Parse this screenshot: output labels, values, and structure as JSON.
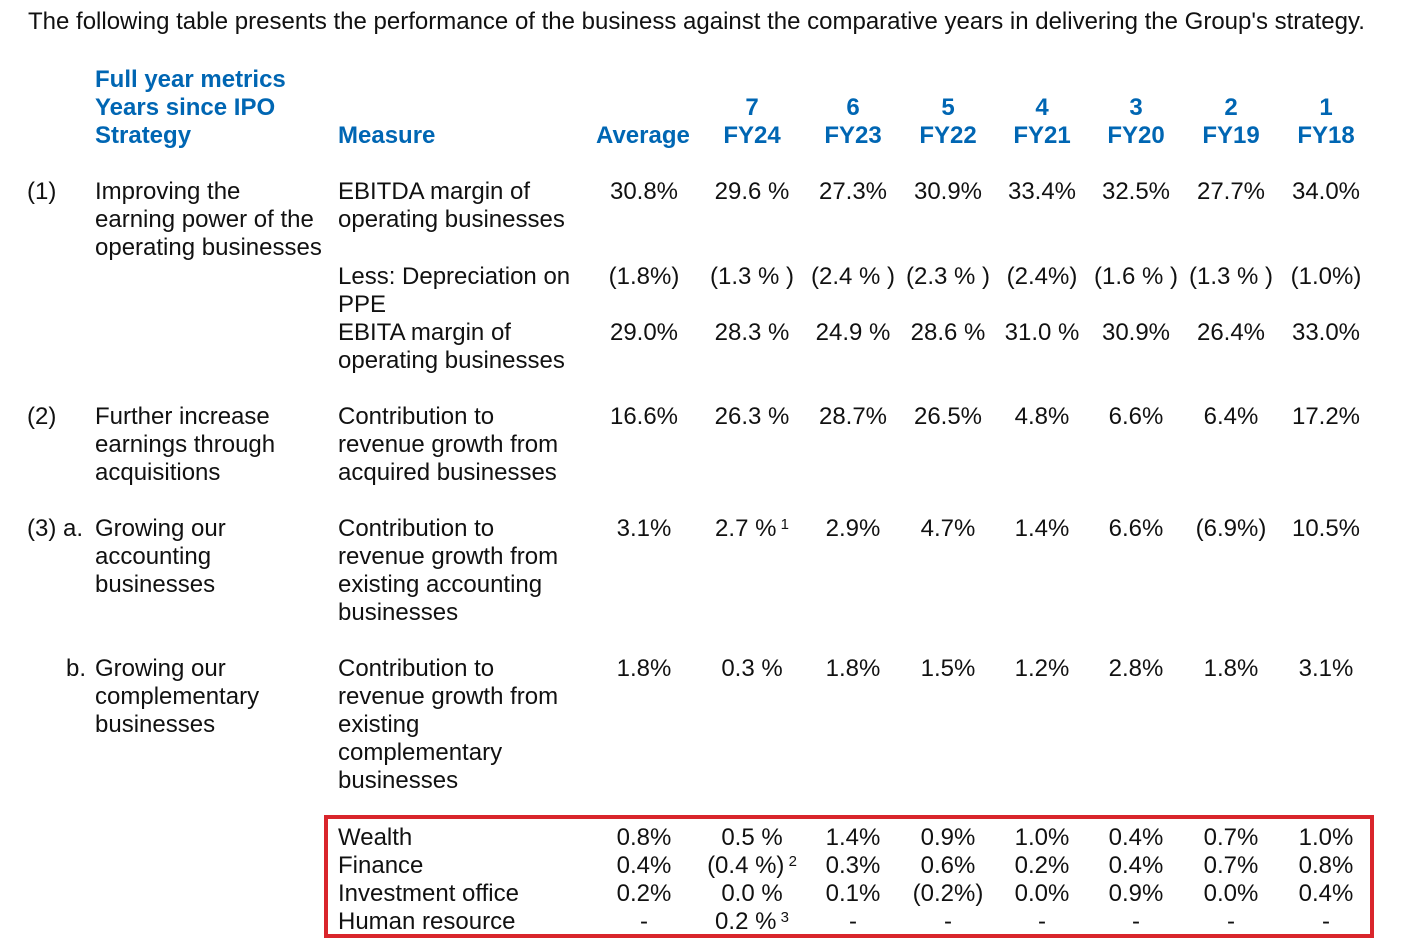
{
  "intro": "The following table presents the performance of the business against the comparative years in delivering the Group's strategy.",
  "header": {
    "left_lines": [
      "Full year metrics",
      "Years since IPO",
      "Strategy"
    ],
    "measure": "Measure",
    "average": "Average",
    "years": [
      {
        "n": "7",
        "fy": "FY24"
      },
      {
        "n": "6",
        "fy": "FY23"
      },
      {
        "n": "5",
        "fy": "FY22"
      },
      {
        "n": "4",
        "fy": "FY21"
      },
      {
        "n": "3",
        "fy": "FY20"
      },
      {
        "n": "2",
        "fy": "FY19"
      },
      {
        "n": "1",
        "fy": "FY18"
      }
    ]
  },
  "rows": [
    {
      "label": "(1)",
      "strategy": [
        "Improving the",
        "earning power of the",
        "operating businesses"
      ],
      "measure": [
        "EBITDA margin of",
        "operating businesses"
      ],
      "average": "30.8%",
      "values": [
        "29.6 %",
        "27.3%",
        "30.9%",
        "33.4%",
        "32.5%",
        "27.7%",
        "34.0%"
      ]
    },
    {
      "label": "",
      "strategy": [],
      "measure": [
        "Less: Depreciation on",
        "PPE"
      ],
      "average": "(1.8%)",
      "values": [
        "(1.3 % )",
        "(2.4 % )",
        "(2.3 % )",
        "(2.4%)",
        "(1.6 % )",
        "(1.3 % )",
        "(1.0%)"
      ]
    },
    {
      "label": "",
      "strategy": [],
      "measure": [
        "EBITA margin of",
        "operating businesses"
      ],
      "average": "29.0%",
      "values": [
        "28.3 %",
        "24.9 %",
        "28.6 %",
        "31.0 %",
        "30.9%",
        "26.4%",
        "33.0%"
      ]
    },
    {
      "label": "(2)",
      "strategy": [
        "Further increase",
        "earnings through",
        "acquisitions"
      ],
      "measure": [
        "Contribution to",
        "revenue growth from",
        "acquired businesses"
      ],
      "average": "16.6%",
      "values": [
        "26.3 %",
        "28.7%",
        "26.5%",
        "4.8%",
        "6.6%",
        "6.4%",
        "17.2%"
      ]
    },
    {
      "label": "(3) a.",
      "strategy": [
        "Growing our",
        "accounting",
        "businesses"
      ],
      "measure": [
        "Contribution to",
        "revenue growth from",
        "existing accounting",
        "businesses"
      ],
      "average": "3.1%",
      "values": [
        "2.7 %",
        "2.9%",
        "4.7%",
        "1.4%",
        "6.6%",
        "(6.9%)",
        "10.5%"
      ],
      "footnote_fy24": "1"
    },
    {
      "label": "b.",
      "strategy": [
        "Growing our",
        "complementary",
        "businesses"
      ],
      "measure": [
        "Contribution to",
        "revenue growth from",
        "existing",
        "complementary",
        "businesses"
      ],
      "average": "1.8%",
      "values": [
        "0.3 %",
        "1.8%",
        "1.5%",
        "1.2%",
        "2.8%",
        "1.8%",
        "3.1%"
      ]
    }
  ],
  "sub_rows": [
    {
      "measure": "Wealth",
      "average": "0.8%",
      "values": [
        "0.5 %",
        "1.4%",
        "0.9%",
        "1.0%",
        "0.4%",
        "0.7%",
        "1.0%"
      ]
    },
    {
      "measure": "Finance",
      "average": "0.4%",
      "values": [
        "(0.4 %)",
        "0.3%",
        "0.6%",
        "0.2%",
        "0.4%",
        "0.7%",
        "0.8%"
      ],
      "footnote_fy24": "2"
    },
    {
      "measure": "Investment office",
      "average": "0.2%",
      "values": [
        "0.0 %",
        "0.1%",
        "(0.2%)",
        "0.0%",
        "0.9%",
        "0.0%",
        "0.4%"
      ]
    },
    {
      "measure": "Human resource",
      "average": "-",
      "values": [
        "0.2 %",
        "-",
        "-",
        "-",
        "-",
        "-",
        "-"
      ],
      "footnote_fy24": "3"
    }
  ],
  "colors": {
    "header_blue": "#0066b3",
    "highlight_red": "#d9252b"
  }
}
